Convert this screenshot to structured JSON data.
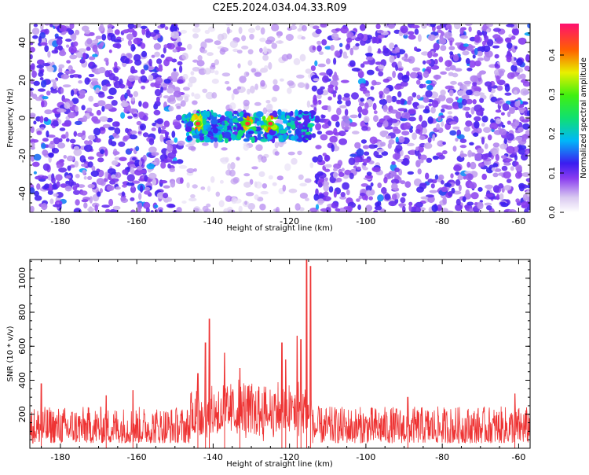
{
  "title": "C2E5.2024.034.04.33.R09",
  "chart_data": [
    {
      "type": "heatmap",
      "xlabel": "Height of straight line (km)",
      "ylabel": "Frequency (Hz)",
      "xlim": [
        -188,
        -57
      ],
      "ylim": [
        -50,
        50
      ],
      "xticks": [
        -180,
        -160,
        -140,
        -120,
        -100,
        -80,
        -60
      ],
      "yticks": [
        -40,
        -20,
        0,
        20,
        40
      ],
      "colorbar": {
        "label": "Normalized spectral amplitude",
        "range": [
          0,
          0.48
        ],
        "ticks": [
          0.0,
          0.1,
          0.2,
          0.3,
          0.4
        ]
      },
      "background_amplitude": 0.08,
      "gap_region_km": [
        -148,
        -114
      ],
      "gap_amplitude": 0.02,
      "signal_band": {
        "x_range": [
          -148,
          -114
        ],
        "freq_range": [
          -12,
          3
        ],
        "peak_amplitude": 0.45,
        "peaks_at_km": [
          -144,
          -131,
          -125
        ]
      }
    },
    {
      "type": "line",
      "xlabel": "Height of straight line (km)",
      "ylabel": "SNR (10 * v/v)",
      "xlim": [
        -188,
        -57
      ],
      "ylim": [
        0,
        1110
      ],
      "xticks": [
        -180,
        -160,
        -140,
        -120,
        -100,
        -80,
        -60
      ],
      "yticks": [
        200,
        400,
        600,
        800,
        1000
      ],
      "color": "#ee3333",
      "noise_floor_range": [
        30,
        300
      ],
      "peaks": [
        {
          "x": -185,
          "y": 380
        },
        {
          "x": -168,
          "y": 310
        },
        {
          "x": -161,
          "y": 340
        },
        {
          "x": -144,
          "y": 440
        },
        {
          "x": -142,
          "y": 620
        },
        {
          "x": -141,
          "y": 760
        },
        {
          "x": -137,
          "y": 560
        },
        {
          "x": -133,
          "y": 470
        },
        {
          "x": -122,
          "y": 620
        },
        {
          "x": -121,
          "y": 520
        },
        {
          "x": -118,
          "y": 660
        },
        {
          "x": -117,
          "y": 640
        },
        {
          "x": -115.5,
          "y": 1110
        },
        {
          "x": -114.5,
          "y": 1070
        },
        {
          "x": -89,
          "y": 300
        },
        {
          "x": -61,
          "y": 320
        }
      ]
    }
  ]
}
